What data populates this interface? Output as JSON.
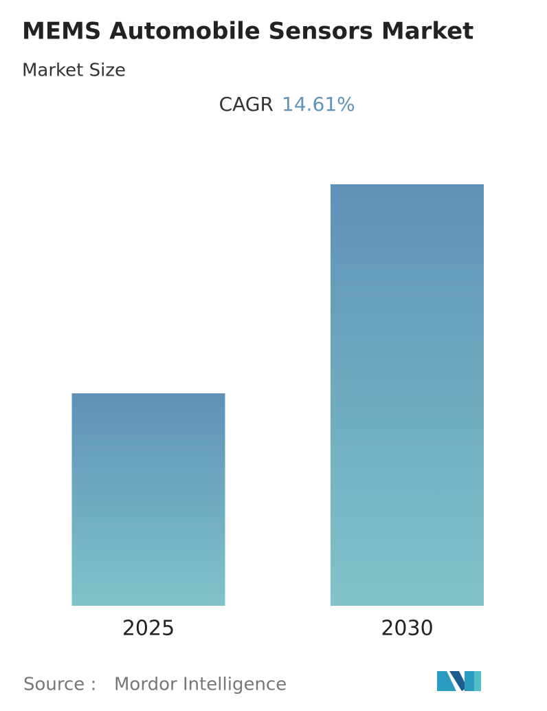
{
  "chart_data": {
    "type": "bar",
    "title": "MEMS Automobile Sensors Market",
    "subtitle": "Market Size",
    "cagr_label": "CAGR",
    "cagr_value": "14.61%",
    "categories": [
      "2025",
      "2030"
    ],
    "values": [
      50.4,
      100
    ],
    "ylim": [
      0,
      100
    ],
    "source_label": "Source :",
    "source": "Mordor Intelligence"
  }
}
